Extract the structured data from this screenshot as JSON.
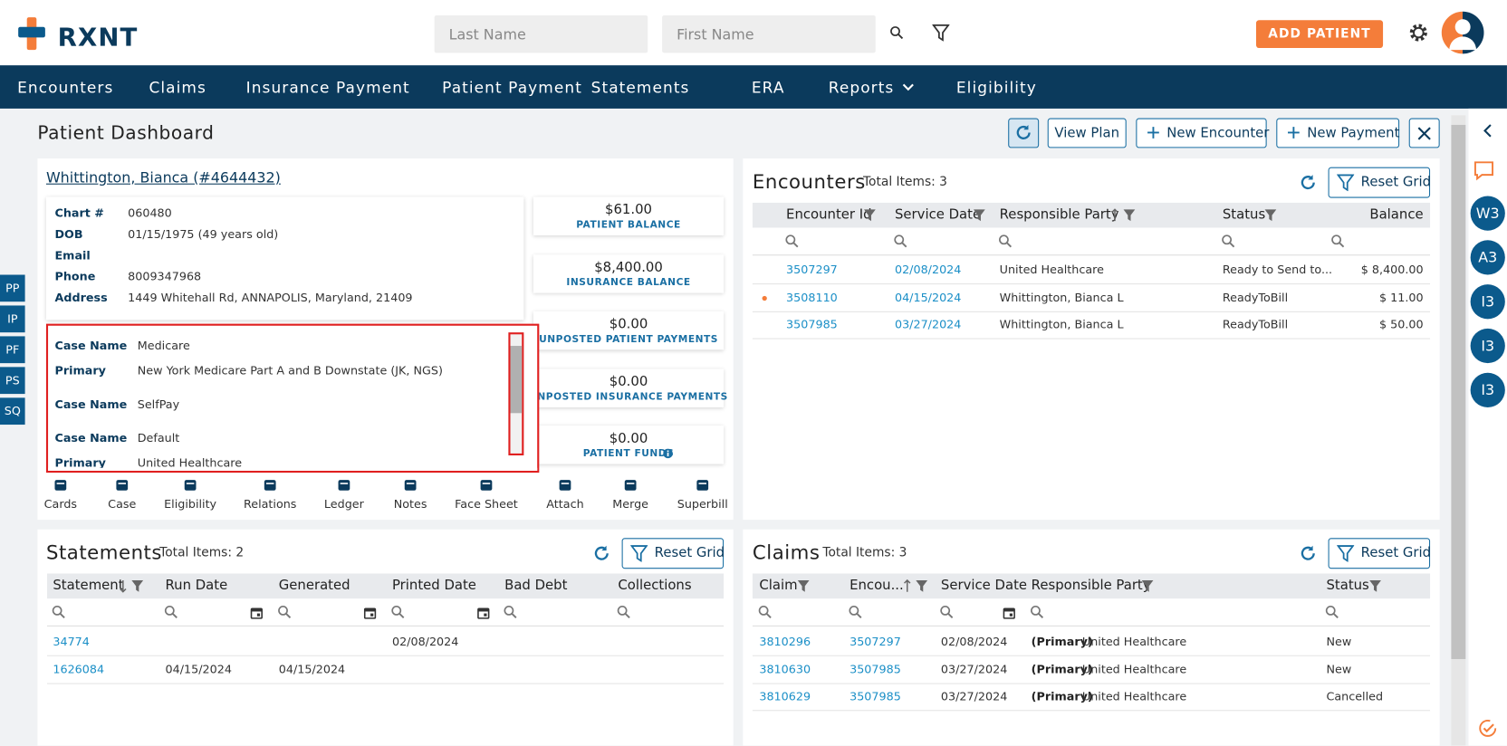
{
  "header": {
    "logo": "RXNT",
    "search": [
      "Last Name",
      "First Name"
    ],
    "add_patient": "ADD PATIENT"
  },
  "nav": [
    "Encounters",
    "Claims",
    "Insurance Payment",
    "Patient Payment",
    "Statements",
    "ERA",
    "Reports",
    "Eligibility"
  ],
  "side_tabs": [
    "PP",
    "IP",
    "PF",
    "PS",
    "SQ"
  ],
  "page_title": "Patient Dashboard",
  "toolbar": [
    "View Plan",
    "New Encounter",
    "New Payment"
  ],
  "patient": {
    "name": "Whittington, Bianca (#4644432)",
    "fields": [
      {
        "label": "Chart #",
        "value": "060480"
      },
      {
        "label": "DOB",
        "value": "01/15/1975 (49 years old)"
      },
      {
        "label": "Email"
      },
      {
        "label": "Phone",
        "value": "8009347968"
      },
      {
        "label": "Address",
        "value": "1449 Whitehall Rd, ANNAPOLIS, Maryland, 21409"
      }
    ],
    "cases": [
      {
        "label": "Case Name",
        "value": "Medicare"
      },
      {
        "label": "Primary",
        "value": "New York Medicare Part A and B Downstate (JK, NGS)"
      },
      {
        "label": "Case Name",
        "value": "SelfPay"
      },
      {
        "label": "Case Name",
        "value": "Default"
      },
      {
        "label": "Primary",
        "value": "United Healthcare"
      }
    ],
    "balances": [
      {
        "amount": "$61.00",
        "label": "PATIENT BALANCE"
      },
      {
        "amount": "$8,400.00",
        "label": "INSURANCE BALANCE"
      },
      {
        "amount": "$0.00",
        "label": "UNPOSTED PATIENT PAYMENTS"
      },
      {
        "amount": "$0.00",
        "label": "UNPOSTED INSURANCE PAYMENTS"
      },
      {
        "amount": "$0.00",
        "label": "PATIENT FUNDS"
      }
    ],
    "actions": [
      "Cards",
      "Case",
      "Eligibility",
      "Relations",
      "Ledger",
      "Notes",
      "Face Sheet",
      "Attach",
      "Merge",
      "Superbill"
    ]
  },
  "encounters": {
    "title": "Encounters",
    "total": "Total Items: 3",
    "reset": "Reset Grid",
    "columns": [
      "Encounter Id",
      "Service Date",
      "Responsible Party",
      "Status",
      "Balance"
    ],
    "rows": [
      [
        "3507297",
        "02/08/2024",
        "United Healthcare",
        "Ready to Send to...",
        "$ 8,400.00"
      ],
      [
        "3508110",
        "04/15/2024",
        "Whittington, Bianca L",
        "ReadyToBill",
        "$ 11.00"
      ],
      [
        "3507985",
        "03/27/2024",
        "Whittington, Bianca L",
        "ReadyToBill",
        "$ 50.00"
      ]
    ]
  },
  "statements": {
    "title": "Statements",
    "total": "Total Items: 2",
    "reset": "Reset Grid",
    "columns": [
      "Statement",
      "Run Date",
      "Generated",
      "Printed Date",
      "Bad Debt",
      "Collections"
    ],
    "rows": [
      [
        "34774",
        null,
        null,
        "02/08/2024",
        null,
        null
      ],
      [
        "1626084",
        "04/15/2024",
        "04/15/2024",
        null,
        null,
        null
      ]
    ]
  },
  "claims": {
    "title": "Claims",
    "total": "Total Items: 3",
    "reset": "Reset Grid",
    "columns": [
      "Claim",
      "Encou...",
      "Service Date",
      "Responsible Party",
      "Status"
    ],
    "rows": [
      [
        "3810296",
        "3507297",
        "02/08/2024",
        {
          "payer_type": "(Primary)",
          "payer": "United Healthcare"
        },
        "New"
      ],
      [
        "3810630",
        "3507985",
        "03/27/2024",
        {
          "payer_type": "(Primary)",
          "payer": "United Healthcare"
        },
        "New"
      ],
      [
        "3810629",
        "3507985",
        "03/27/2024",
        {
          "payer_type": "(Primary)",
          "payer": "United Healthcare"
        },
        "Cancelled"
      ]
    ]
  },
  "right_rail": [
    "W3",
    "A3",
    "I3",
    "I3",
    "I3"
  ]
}
